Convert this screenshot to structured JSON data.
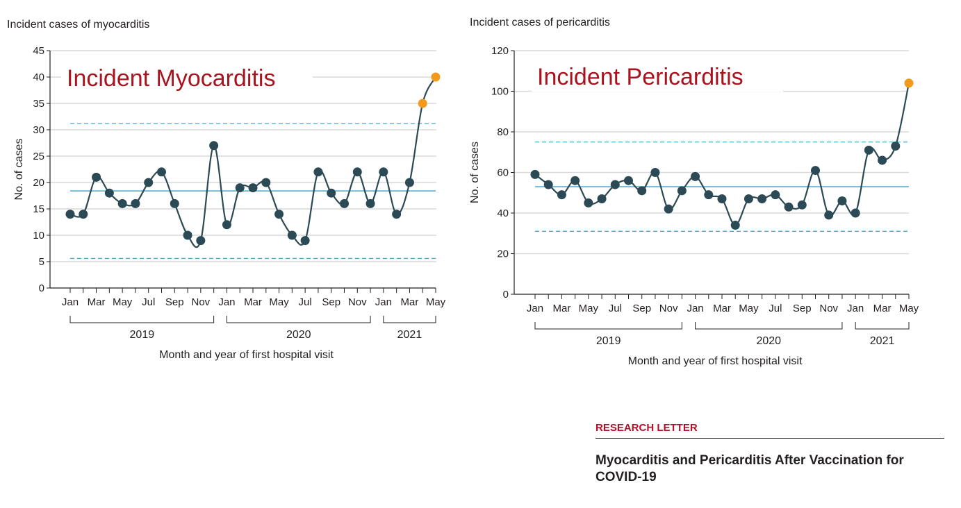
{
  "chart_data": [
    {
      "type": "line",
      "title": "Incident Myocarditis",
      "ylabel_top": "Incident cases of myocarditis",
      "ylabel": "No. of cases",
      "xlabel": "Month and year of first hospital visit",
      "ylim": [
        0,
        45
      ],
      "yticks": [
        0,
        5,
        10,
        15,
        20,
        25,
        30,
        35,
        40,
        45
      ],
      "xtick_labels": [
        "Jan",
        "Mar",
        "May",
        "Jul",
        "Sep",
        "Nov",
        "Jan",
        "Mar",
        "May",
        "Jul",
        "Sep",
        "Nov",
        "Jan",
        "Mar",
        "May"
      ],
      "years": [
        {
          "label": "2019",
          "months": 12
        },
        {
          "label": "2020",
          "months": 12
        },
        {
          "label": "2021",
          "months": 5
        }
      ],
      "grid": true,
      "center_line": 18.4,
      "upper_limit": 31.2,
      "lower_limit": 5.6,
      "values": [
        14,
        14,
        21,
        18,
        16,
        16,
        20,
        22,
        16,
        10,
        9,
        27,
        12,
        19,
        19,
        20,
        14,
        10,
        9,
        22,
        18,
        16,
        22,
        16,
        22,
        14,
        20,
        35,
        40
      ],
      "highlight_from_index": 27,
      "colors": {
        "line": "#2b4a55",
        "point": "#2b4a55",
        "highlight": "#f39a1e",
        "center": "#4aa8c8",
        "limits": "#4aa8c8",
        "grid": "#d9d9d9",
        "overlay": "#a8141e"
      }
    },
    {
      "type": "line",
      "title": "Incident Pericarditis",
      "ylabel_top": "Incident cases of pericarditis",
      "ylabel": "No. of cases",
      "xlabel": "Month and year of first hospital visit",
      "ylim": [
        0,
        120
      ],
      "yticks": [
        0,
        20,
        40,
        60,
        80,
        100,
        120
      ],
      "xtick_labels": [
        "Jan",
        "Mar",
        "May",
        "Jul",
        "Sep",
        "Nov",
        "Jan",
        "Mar",
        "May",
        "Jul",
        "Sep",
        "Nov",
        "Jan",
        "Mar",
        "May"
      ],
      "years": [
        {
          "label": "2019",
          "months": 12
        },
        {
          "label": "2020",
          "months": 12
        },
        {
          "label": "2021",
          "months": 5
        }
      ],
      "grid": true,
      "center_line": 53,
      "upper_limit": 75,
      "lower_limit": 31,
      "values": [
        59,
        54,
        49,
        56,
        45,
        47,
        54,
        56,
        51,
        60,
        42,
        51,
        58,
        49,
        47,
        34,
        47,
        47,
        49,
        43,
        44,
        61,
        39,
        46,
        40,
        71,
        66,
        73,
        104
      ],
      "highlight_from_index": 28,
      "colors": {
        "line": "#2b4a55",
        "point": "#2b4a55",
        "highlight": "#f39a1e",
        "center": "#4aa8c8",
        "limits": "#4aa8c8",
        "grid": "#d9d9d9",
        "overlay": "#a8141e"
      }
    }
  ],
  "letter": {
    "kicker": "RESEARCH LETTER",
    "title": "Myocarditis and Pericarditis After Vaccination for COVID-19"
  }
}
